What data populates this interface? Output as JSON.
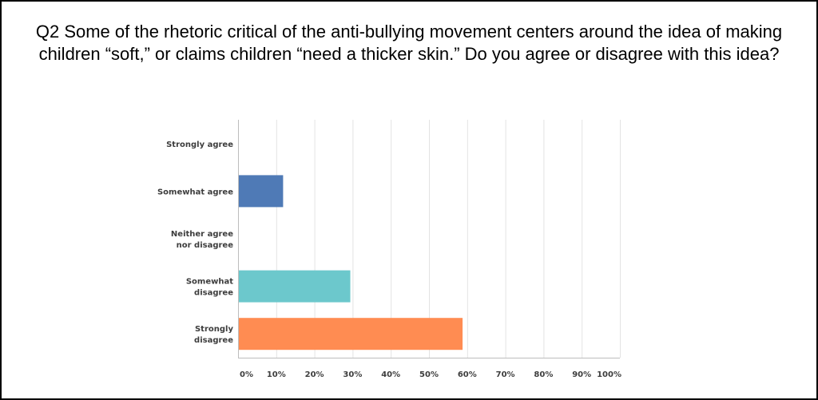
{
  "chart_data": {
    "type": "bar",
    "orientation": "horizontal",
    "title": "Q2 Some of the rhetoric critical of the anti-bullying movement centers around the idea of making children “soft,” or claims children “need a thicker skin.” Do you agree or disagree with this idea?",
    "categories": [
      [
        "Strongly agree"
      ],
      [
        "Somewhat agree"
      ],
      [
        "Neither agree",
        "nor disagree"
      ],
      [
        "Somewhat",
        "disagree"
      ],
      [
        "Strongly",
        "disagree"
      ]
    ],
    "values": [
      0,
      11.8,
      0,
      29.4,
      58.8
    ],
    "colors": [
      "#5b8fcf",
      "#4f7ab6",
      "#a9a9a9",
      "#6cc8cc",
      "#ff8c52"
    ],
    "xlim": [
      0,
      100
    ],
    "x_ticks": [
      "0%",
      "10%",
      "20%",
      "30%",
      "40%",
      "50%",
      "60%",
      "70%",
      "80%",
      "90%",
      "100%"
    ],
    "xlabel": "",
    "ylabel": "",
    "grid": true,
    "legend": false
  }
}
